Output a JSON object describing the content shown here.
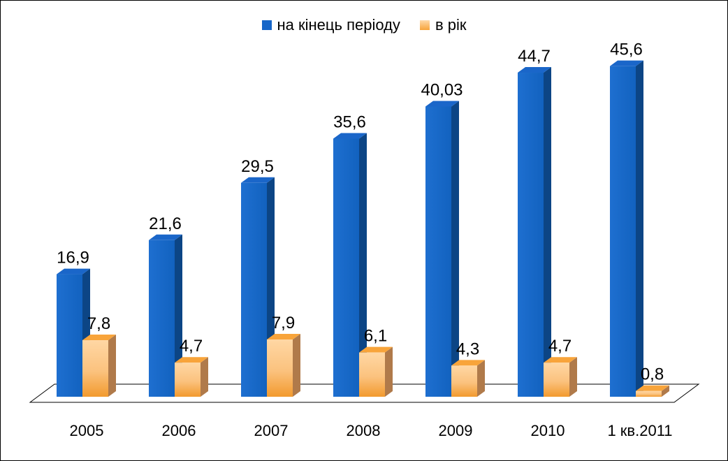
{
  "chart_data": {
    "type": "bar",
    "categories": [
      "2005",
      "2006",
      "2007",
      "2008",
      "2009",
      "2010",
      "1 кв.2011"
    ],
    "series": [
      {
        "name": "на кінець періоду",
        "values": [
          16.9,
          21.6,
          29.5,
          35.6,
          40.03,
          44.7,
          45.6
        ],
        "labels": [
          "16,9",
          "21,6",
          "29,5",
          "35,6",
          "40,03",
          "44,7",
          "45,6"
        ],
        "color": "#1565C8"
      },
      {
        "name": "в рік",
        "values": [
          7.8,
          4.7,
          7.9,
          6.1,
          4.3,
          4.7,
          0.8
        ],
        "labels": [
          "7,8",
          "4,7",
          "7,9",
          "6,1",
          "4,3",
          "4,7",
          "0,8"
        ],
        "color": "#F7A43A"
      }
    ],
    "title": "",
    "xlabel": "",
    "ylabel": "",
    "ylim": [
      0,
      50
    ],
    "grid": false,
    "legend_position": "top",
    "style": "3d-column"
  }
}
